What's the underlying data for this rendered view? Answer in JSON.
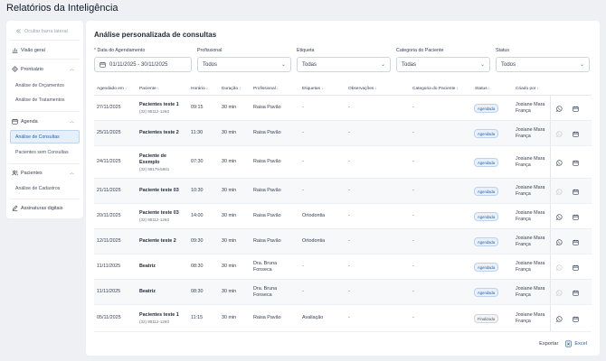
{
  "page_title": "Relatórios da Inteligência",
  "sidebar": {
    "hide_label": "Ocultar barra lateral",
    "overview": "Visão geral",
    "prontuario": "Prontuário",
    "prontuario_items": [
      "Análise de Orçamentos",
      "Análise de Tratamentos"
    ],
    "agenda": "Agenda",
    "agenda_items": [
      "Análise de Consultas",
      "Pacientes sem Consultas"
    ],
    "pacientes": "Pacientes",
    "pacientes_items": [
      "Análise de Cadastros"
    ],
    "assinaturas": "Assinaturas digitais"
  },
  "main": {
    "title": "Análise personalizada de consultas",
    "filters": {
      "date_label": "Data do Agendamento",
      "date_value": "01/11/2025 - 30/11/2025",
      "profissional_label": "Profissional",
      "profissional_value": "Todos",
      "etiqueta_label": "Etiqueta",
      "etiqueta_value": "Todas",
      "categoria_label": "Categoria do Paciente",
      "categoria_value": "Todas",
      "status_label": "Status",
      "status_value": "Todos"
    },
    "columns": [
      "Agendado em",
      "Paciente",
      "Horário",
      "Duração",
      "Profissional",
      "Etiquetas",
      "Observações",
      "Categoria do Paciente",
      "Status",
      "Criado por"
    ],
    "rows": [
      {
        "date": "27/11/2025",
        "patient": "Pacientes teste 1",
        "phone": "(32) 98112-1260",
        "time": "09:15",
        "duration": "30 min",
        "professional": "Raisa Pavão",
        "tags": "-",
        "notes": "-",
        "category": "-",
        "status": "Agendada",
        "created_by": "Josiane Mara França"
      },
      {
        "date": "25/11/2025",
        "patient": "Pacientes teste 2",
        "phone": "",
        "time": "11:30",
        "duration": "30 min",
        "professional": "Raisa Pavão",
        "tags": "-",
        "notes": "-",
        "category": "-",
        "status": "Agendada",
        "created_by": "Josiane Mara França"
      },
      {
        "date": "24/11/2025",
        "patient": "Paciente de Exemplo",
        "phone": "(32) 99179-5981",
        "time": "07:30",
        "duration": "30 min",
        "professional": "Raisa Pavão",
        "tags": "-",
        "notes": "-",
        "category": "-",
        "status": "Agendada",
        "created_by": "Josiane Mara França"
      },
      {
        "date": "21/11/2025",
        "patient": "Paciente teste 03",
        "phone": "",
        "time": "10:30",
        "duration": "30 min",
        "professional": "Raisa Pavão",
        "tags": "-",
        "notes": "-",
        "category": "-",
        "status": "Agendada",
        "created_by": "Josiane Mara França"
      },
      {
        "date": "20/11/2025",
        "patient": "Paciente teste 03",
        "phone": "(32) 98112-1260",
        "time": "14:00",
        "duration": "30 min",
        "professional": "Raisa Pavão",
        "tags": "Ortodontia",
        "notes": "-",
        "category": "-",
        "status": "Agendada",
        "created_by": "Josiane Mara França"
      },
      {
        "date": "12/11/2025",
        "patient": "Paciente teste 2",
        "phone": "",
        "time": "09:30",
        "duration": "30 min",
        "professional": "Raisa Pavão",
        "tags": "Ortodontia",
        "notes": "-",
        "category": "-",
        "status": "Agendada",
        "created_by": "Josiane Mara França"
      },
      {
        "date": "11/11/2025",
        "patient": "Beatriz",
        "phone": "",
        "time": "08:30",
        "duration": "30 min",
        "professional": "Dra. Bruna Fonseca",
        "tags": "-",
        "notes": "-",
        "category": "-",
        "status": "Agendada",
        "created_by": "Josiane Mara França"
      },
      {
        "date": "11/11/2025",
        "patient": "Beatriz",
        "phone": "",
        "time": "08:30",
        "duration": "30 min",
        "professional": "Dra. Bruna Fonseca",
        "tags": "-",
        "notes": "-",
        "category": "-",
        "status": "Agendada",
        "created_by": "Josiane Mara França"
      },
      {
        "date": "05/11/2025",
        "patient": "Pacientes teste 1",
        "phone": "(32) 98112-1260",
        "time": "11:15",
        "duration": "30 min",
        "professional": "Raisa Pavão",
        "tags": "Avaliação",
        "notes": "-",
        "category": "-",
        "status": "Finalizada",
        "created_by": "Josiane Mara França"
      }
    ],
    "export_label": "Exportar",
    "excel_label": "Excel"
  },
  "colors": {
    "accent": "#2563a8",
    "badge_bg": "#e7f0fb",
    "whatsapp_icon": "#374151"
  }
}
